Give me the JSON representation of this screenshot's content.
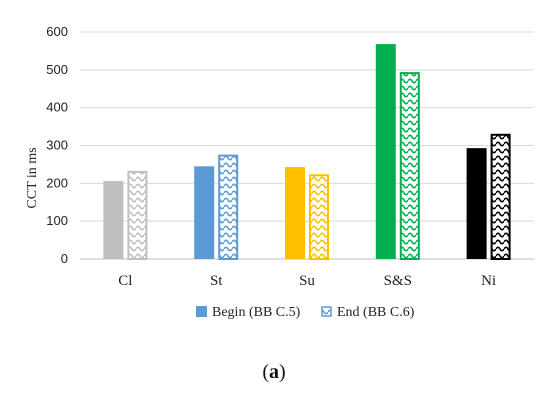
{
  "chart_data": {
    "type": "bar",
    "categories": [
      "Cl",
      "St",
      "Su",
      "S&S",
      "Ni"
    ],
    "series": [
      {
        "name": "Begin (BB C.5)",
        "values": [
          206,
          245,
          243,
          568,
          293
        ],
        "pattern": "solid"
      },
      {
        "name": "End (BB C.6)",
        "values": [
          233,
          276,
          224,
          494,
          331
        ],
        "pattern": "wave"
      }
    ],
    "category_colors": [
      "#bfbfbf",
      "#5b9bd5",
      "#ffc000",
      "#00b050",
      "#000000"
    ],
    "legend_colors": [
      "#5b9bd5",
      "#5b9bd5"
    ],
    "ylabel": "CCT in ms",
    "xlabel": "",
    "ylim": [
      0,
      600
    ],
    "yticks": [
      0,
      100,
      200,
      300,
      400,
      500,
      600
    ],
    "grid": true,
    "legend_position": "bottom"
  },
  "caption": {
    "open": "(",
    "letter": "a",
    "close": ")"
  }
}
